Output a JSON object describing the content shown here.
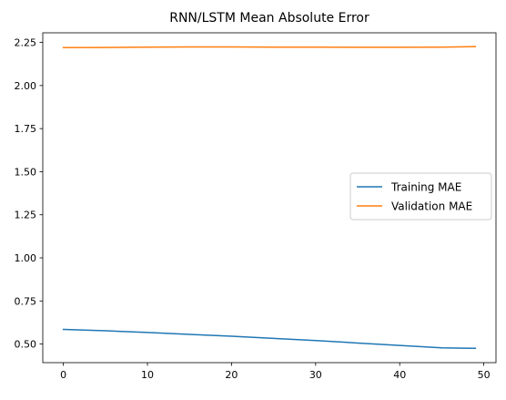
{
  "chart_data": {
    "type": "line",
    "title": "RNN/LSTM Mean Absolute Error",
    "xlabel": "",
    "ylabel": "",
    "xlim": [
      -2.45,
      51.45
    ],
    "ylim": [
      0.392,
      2.306
    ],
    "x_ticks": [
      0,
      10,
      20,
      30,
      40,
      50
    ],
    "y_ticks": [
      0.5,
      0.75,
      1.0,
      1.25,
      1.5,
      1.75,
      2.0,
      2.25
    ],
    "y_tick_labels": [
      "0.50",
      "0.75",
      "1.00",
      "1.25",
      "1.50",
      "1.75",
      "2.00",
      "2.25"
    ],
    "grid": false,
    "legend_position": "center-right",
    "series": [
      {
        "name": "Training MAE",
        "color": "#1f77b4",
        "x": [
          0,
          5,
          10,
          15,
          20,
          25,
          30,
          35,
          40,
          45,
          49
        ],
        "values": [
          0.585,
          0.577,
          0.567,
          0.556,
          0.545,
          0.533,
          0.52,
          0.506,
          0.492,
          0.478,
          0.475
        ]
      },
      {
        "name": "Validation MAE",
        "color": "#ff7f0e",
        "x": [
          0,
          5,
          10,
          15,
          20,
          25,
          30,
          35,
          40,
          45,
          49
        ],
        "values": [
          2.22,
          2.221,
          2.223,
          2.224,
          2.224,
          2.223,
          2.223,
          2.222,
          2.222,
          2.223,
          2.226
        ]
      }
    ]
  }
}
